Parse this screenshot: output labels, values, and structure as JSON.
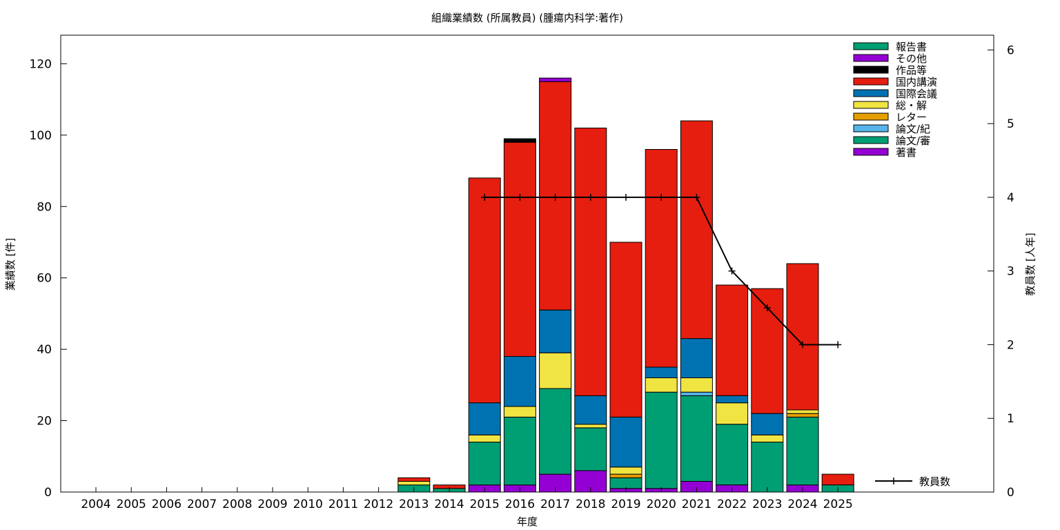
{
  "chart_data": {
    "type": "bar",
    "stacked": true,
    "title": "組織業績数 (所属教員) (腫瘍内科学:著作)",
    "xlabel": "年度",
    "ylabel": "業績数 [件]",
    "y2label": "教員数 [人年]",
    "ylim": [
      0,
      128
    ],
    "y2lim": [
      0,
      6.2
    ],
    "yticks": [
      "0",
      "20",
      "40",
      "60",
      "80",
      "100",
      "120"
    ],
    "y2ticks": [
      "0",
      "1",
      "2",
      "3",
      "4",
      "5",
      "6"
    ],
    "grid": false,
    "legend_position": "top-right",
    "categories": [
      "2004",
      "2005",
      "2006",
      "2007",
      "2008",
      "2009",
      "2010",
      "2011",
      "2012",
      "2013",
      "2014",
      "2015",
      "2016",
      "2017",
      "2018",
      "2019",
      "2020",
      "2021",
      "2022",
      "2023",
      "2024",
      "2025"
    ],
    "series": [
      {
        "name": "著書",
        "color": "#9400d3",
        "values": [
          0,
          0,
          0,
          0,
          0,
          0,
          0,
          0,
          0,
          0,
          0,
          2,
          2,
          5,
          6,
          1,
          1,
          3,
          2,
          0,
          2,
          0
        ]
      },
      {
        "name": "論文/審",
        "color": "#009e73",
        "values": [
          0,
          0,
          0,
          0,
          0,
          0,
          0,
          0,
          0,
          2,
          1,
          12,
          19,
          24,
          12,
          3,
          27,
          24,
          17,
          14,
          19,
          2
        ]
      },
      {
        "name": "論文/紀",
        "color": "#56b4e9",
        "values": [
          0,
          0,
          0,
          0,
          0,
          0,
          0,
          0,
          0,
          0,
          0,
          0,
          0,
          0,
          0,
          0,
          0,
          1,
          0,
          0,
          0,
          0
        ]
      },
      {
        "name": "レター",
        "color": "#e69f00",
        "values": [
          0,
          0,
          0,
          0,
          0,
          0,
          0,
          0,
          0,
          0,
          0,
          0,
          0,
          0,
          0,
          1,
          0,
          0,
          0,
          0,
          1,
          0
        ]
      },
      {
        "name": "総・解",
        "color": "#f0e442",
        "values": [
          0,
          0,
          0,
          0,
          0,
          0,
          0,
          0,
          0,
          1,
          0,
          2,
          3,
          10,
          1,
          2,
          4,
          4,
          6,
          2,
          1,
          0
        ]
      },
      {
        "name": "国際会議",
        "color": "#0072b2",
        "values": [
          0,
          0,
          0,
          0,
          0,
          0,
          0,
          0,
          0,
          0,
          0,
          9,
          14,
          12,
          8,
          14,
          3,
          11,
          2,
          6,
          0,
          0
        ]
      },
      {
        "name": "国内講演",
        "color": "#e51e10",
        "values": [
          0,
          0,
          0,
          0,
          0,
          0,
          0,
          0,
          0,
          1,
          1,
          63,
          60,
          64,
          75,
          49,
          61,
          61,
          31,
          35,
          41,
          3
        ]
      },
      {
        "name": "作品等",
        "color": "#000000",
        "values": [
          0,
          0,
          0,
          0,
          0,
          0,
          0,
          0,
          0,
          0,
          0,
          0,
          1,
          0,
          0,
          0,
          0,
          0,
          0,
          0,
          0,
          0
        ]
      },
      {
        "name": "その他",
        "color": "#9400d3",
        "values": [
          0,
          0,
          0,
          0,
          0,
          0,
          0,
          0,
          0,
          0,
          0,
          0,
          0,
          1,
          0,
          0,
          0,
          0,
          0,
          0,
          0,
          0
        ]
      },
      {
        "name": "報告書",
        "color": "#009e73",
        "values": [
          0,
          0,
          0,
          0,
          0,
          0,
          0,
          0,
          0,
          0,
          0,
          0,
          0,
          0,
          0,
          0,
          0,
          0,
          0,
          0,
          0,
          0
        ]
      }
    ],
    "line_series": {
      "name": "教員数",
      "color": "#000000",
      "axis": "y2",
      "categories": [
        "2015",
        "2016",
        "2017",
        "2018",
        "2019",
        "2020",
        "2021",
        "2022",
        "2023",
        "2024",
        "2025"
      ],
      "values": [
        4,
        4,
        4,
        4,
        4,
        4,
        4,
        3,
        2.5,
        2,
        2
      ]
    }
  }
}
